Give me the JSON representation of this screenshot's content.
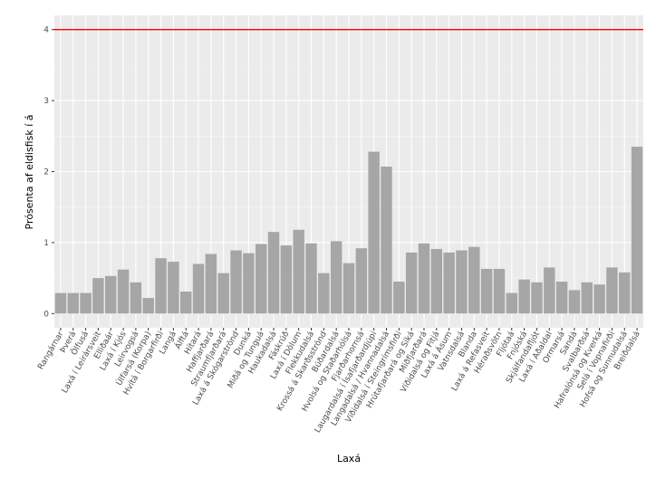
{
  "chart_data": {
    "type": "bar",
    "x_label": "Laxá",
    "y_label": "Prósenta af eldisfisk í á",
    "categories": [
      "Rangárnar",
      "Þverá",
      "Ölfusá",
      "Laxá í Leirársveit",
      "Elliðaár",
      "Laxá í Kjós",
      "Leirvogsá",
      "Úlfarsá (Korpa)",
      "Hvítá í Borgarfirði",
      "Langá",
      "Álftá",
      "Hítará",
      "Haffjarðará",
      "Straumfjarðará",
      "Laxá á Skógarströnd",
      "Dunká",
      "Miðá og Tunguá",
      "Haukadalsá",
      "Fáskrúð",
      "Laxá í Dölum",
      "Flekkudalsá",
      "Krossá á Skarðsströnd",
      "Búðardalsá",
      "Hvolsá og Staðarhólsá",
      "Fjarðarhornsá",
      "Laugardalsá í Ísafjarðardjúpi",
      "Langadalsá / Hvannadalsá",
      "Víðidalsá í Steingrímsfirði",
      "Hrútafjarðará og Síká",
      "Miðfjarðará",
      "Víðidalsá og Fitjá",
      "Laxá á Ásum",
      "Vatnsdalsá",
      "Blanda",
      "Laxá á Refasveit",
      "Héraðsvötn",
      "Fljótaá",
      "Fnjóská",
      "Skjálfandafljót",
      "Laxá í Aðaldal",
      "Ormarsá",
      "Sandá",
      "Svalbarðsá",
      "Hafralónsá og Kverká",
      "Selá í Vopnafirði",
      "Hofsá og Sunnudalsá",
      "Breiðdalsá"
    ],
    "values": [
      0.29,
      0.29,
      0.29,
      0.5,
      0.53,
      0.62,
      0.44,
      0.22,
      0.78,
      0.73,
      0.31,
      0.7,
      0.84,
      0.57,
      0.89,
      0.85,
      0.98,
      1.15,
      0.96,
      1.18,
      0.99,
      0.57,
      1.02,
      0.71,
      0.92,
      2.28,
      2.07,
      0.45,
      0.86,
      0.99,
      0.91,
      0.86,
      0.89,
      0.94,
      0.63,
      0.63,
      0.29,
      0.48,
      0.44,
      0.65,
      0.45,
      0.33,
      0.44,
      0.41,
      0.65,
      0.58,
      2.35
    ],
    "color": "#a6a6a6",
    "hline": 4,
    "hline_color": "#ff0000",
    "ylim": [
      -0.2,
      4.2
    ],
    "yticks": [
      0,
      1,
      2,
      3,
      4
    ],
    "grid": true
  }
}
